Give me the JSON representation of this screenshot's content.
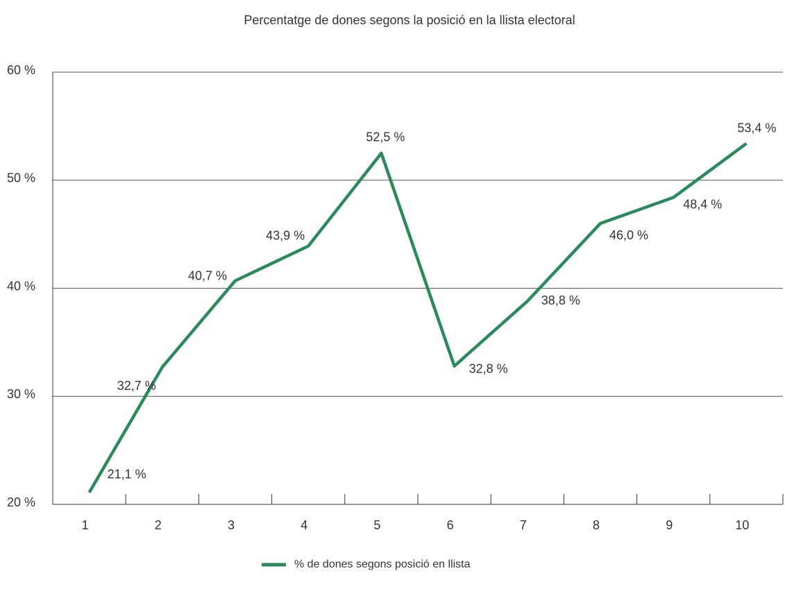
{
  "chart_data": {
    "type": "line",
    "title": "Percentatge de dones segons la posició en la llista electoral",
    "categories": [
      "1",
      "2",
      "3",
      "4",
      "5",
      "6",
      "7",
      "8",
      "9",
      "10"
    ],
    "series": [
      {
        "name": "% de dones segons posició en llista",
        "color": "#2a8a5c",
        "values": [
          21.1,
          32.7,
          40.7,
          43.9,
          52.5,
          32.8,
          38.8,
          46.0,
          48.4,
          53.4
        ],
        "value_labels": [
          "21,1 %",
          "32,7 %",
          "40,7 %",
          "43,9 %",
          "52,5 %",
          "32,8 %",
          "38,8 %",
          "46,0 %",
          "48,4 %",
          "53,4 %"
        ]
      }
    ],
    "ylim": [
      20,
      60
    ],
    "yticks": [
      {
        "value": 20,
        "label": "20 %"
      },
      {
        "value": 30,
        "label": "30 %"
      },
      {
        "value": 40,
        "label": "40 %"
      },
      {
        "value": 50,
        "label": "50 %"
      },
      {
        "value": 60,
        "label": "60 %"
      }
    ],
    "grid": true,
    "legend": "bottom"
  }
}
